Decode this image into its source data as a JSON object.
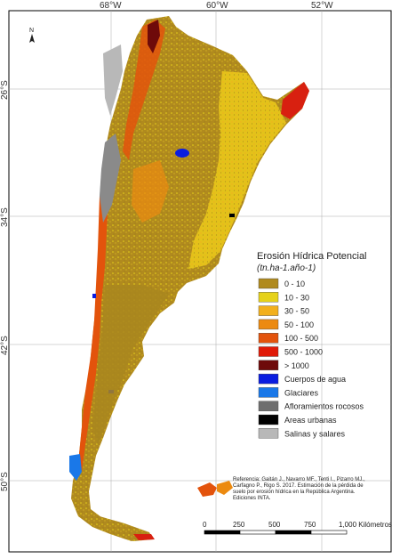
{
  "graticule": {
    "longitudes": [
      "68°W",
      "60°W",
      "52°W"
    ],
    "latitudes": [
      "26°S",
      "34°S",
      "42°S",
      "50°S"
    ]
  },
  "north_arrow": "N",
  "legend": {
    "title": "Erosión Hídrica Potencial",
    "unit": "(tn.ha-1.año-1)",
    "items": [
      {
        "label": "0 - 10",
        "color": "#b08a1e"
      },
      {
        "label": "10 - 30",
        "color": "#e6d21a"
      },
      {
        "label": "30 - 50",
        "color": "#f2b01c"
      },
      {
        "label": "50 - 100",
        "color": "#ec8a10"
      },
      {
        "label": "100 - 500",
        "color": "#e3530c"
      },
      {
        "label": "500 - 1000",
        "color": "#e01a08"
      },
      {
        "label": "> 1000",
        "color": "#6e0a0a"
      },
      {
        "label": "Cuerpos de agua",
        "color": "#0a1de0"
      },
      {
        "label": "Glaciares",
        "color": "#1a78e8"
      },
      {
        "label": "Afloramientos rocosos",
        "color": "#6e6e6e"
      },
      {
        "label": "Areas urbanas",
        "color": "#000000"
      },
      {
        "label": "Salinas y salares",
        "color": "#b8b8b8"
      }
    ]
  },
  "reference": [
    "Referencia: Gaitán J., Navarro MF., Tenti I., Pizarro MJ.,",
    "Carfagno P., Rigo S. 2017. Estimación de la pérdida de",
    "suelo por erosión hídrica en la República Argentina.",
    "Ediciones INTA."
  ],
  "scale_bar": {
    "ticks": [
      "0",
      "250",
      "500",
      "750",
      "1,000 Kilómetros"
    ]
  }
}
